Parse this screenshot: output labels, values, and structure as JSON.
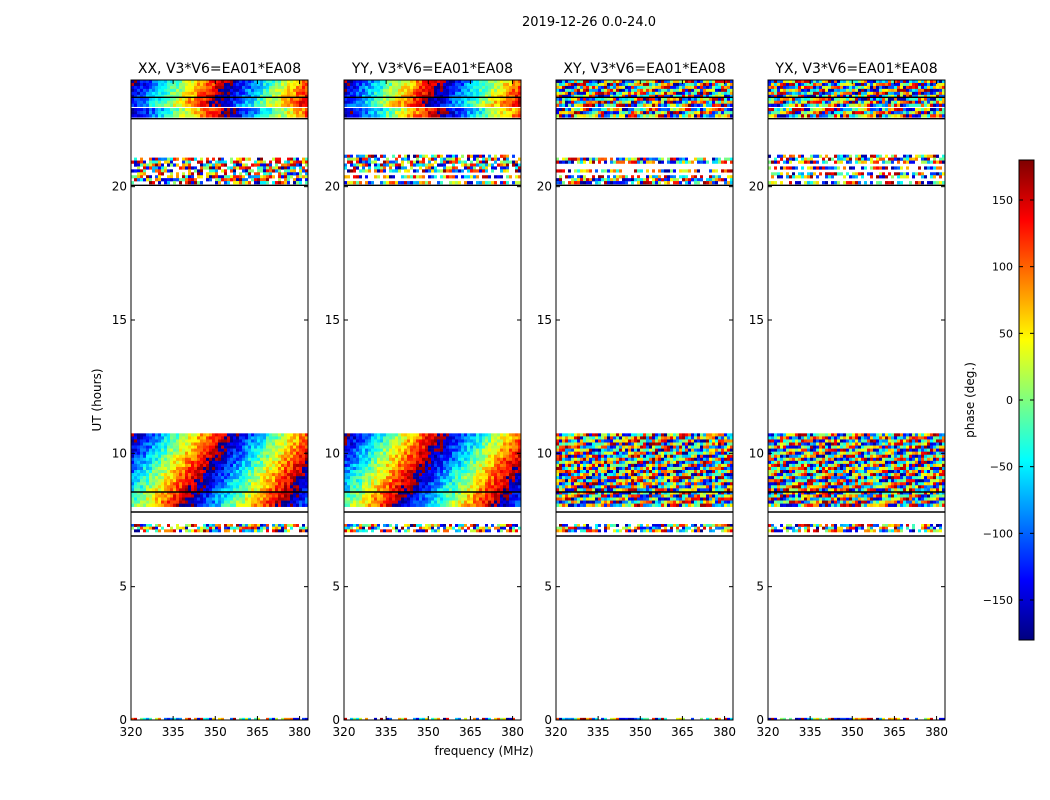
{
  "chart_data": {
    "type": "heatmap",
    "suptitle": "2019-12-26 0.0-24.0",
    "xlabel": "frequency (MHz)",
    "ylabel": "UT (hours)",
    "xlim": [
      320,
      383
    ],
    "ylim": [
      0,
      24
    ],
    "xticks": [
      320,
      335,
      350,
      365,
      380
    ],
    "yticks": [
      0,
      5,
      10,
      15,
      20
    ],
    "colorbar": {
      "label": "phase (deg.)",
      "range": [
        -180,
        180
      ],
      "ticks": [
        -150,
        -100,
        -50,
        0,
        50,
        100,
        150
      ],
      "colormap": "jet",
      "colormap_stops": [
        "#00007f",
        "#0000ff",
        "#007fff",
        "#00ffff",
        "#7fff7f",
        "#ffff00",
        "#ff7f00",
        "#ff0000",
        "#7f0000"
      ]
    },
    "data_bands_ut": [
      {
        "start": 23.0,
        "end": 24.0,
        "kind": "dense"
      },
      {
        "start": 22.6,
        "end": 22.95,
        "kind": "dense"
      },
      {
        "start": 20.1,
        "end": 21.2,
        "kind": "sparse"
      },
      {
        "start": 8.0,
        "end": 10.75,
        "kind": "dense"
      },
      {
        "start": 7.05,
        "end": 7.35,
        "kind": "sparse"
      },
      {
        "start": 0.0,
        "end": 0.08,
        "kind": "thin"
      }
    ],
    "separator_lines_ut": [
      23.35,
      22.55,
      20.05,
      8.55,
      7.8,
      6.9
    ],
    "panels": [
      {
        "title": "XX, V3*V6=EA01*EA08",
        "pattern": "gradient"
      },
      {
        "title": "YY, V3*V6=EA01*EA08",
        "pattern": "gradient"
      },
      {
        "title": "XY, V3*V6=EA01*EA08",
        "pattern": "noise"
      },
      {
        "title": "YX, V3*V6=EA01*EA08",
        "pattern": "noise"
      }
    ]
  }
}
